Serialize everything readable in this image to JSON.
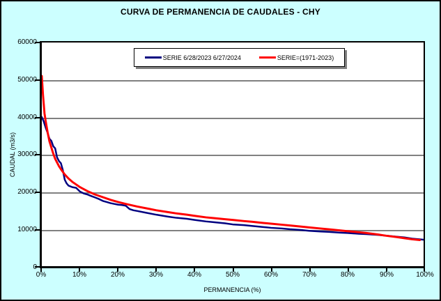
{
  "chart_data": {
    "type": "line",
    "title": "CURVA DE PERMANENCIA DE CAUDALES - CHY",
    "xlabel": "PERMANENCIA (%)",
    "ylabel": "CAUDAL (m3/s)",
    "xlim": [
      0,
      100
    ],
    "ylim": [
      0,
      60000
    ],
    "x_ticks": [
      "0%",
      "10%",
      "20%",
      "30%",
      "40%",
      "50%",
      "60%",
      "70%",
      "80%",
      "90%",
      "100%"
    ],
    "y_ticks": [
      "0",
      "10000",
      "20000",
      "30000",
      "40000",
      "50000",
      "60000"
    ],
    "grid": "horizontal-gray",
    "plot_background": "#FFFFFF",
    "chart_background": "#CCFFFF",
    "gridline_color": "#808080",
    "legend_position": "top-center-inside",
    "series": [
      {
        "name": "SERIE 6/28/2023 6/27/2024",
        "color": "#000080",
        "width": 2.5,
        "points": [
          [
            0,
            40000
          ],
          [
            0.5,
            38800
          ],
          [
            1,
            37200
          ],
          [
            1.5,
            35800
          ],
          [
            2,
            34200
          ],
          [
            2.5,
            33600
          ],
          [
            3,
            32200
          ],
          [
            3.5,
            31600
          ],
          [
            4,
            29200
          ],
          [
            4.5,
            28200
          ],
          [
            5,
            27600
          ],
          [
            5.5,
            25800
          ],
          [
            6,
            23200
          ],
          [
            6.5,
            22200
          ],
          [
            7,
            21600
          ],
          [
            8,
            21200
          ],
          [
            9,
            21000
          ],
          [
            10,
            20000
          ],
          [
            11,
            19500
          ],
          [
            12,
            19200
          ],
          [
            13,
            18800
          ],
          [
            14,
            18400
          ],
          [
            15,
            18000
          ],
          [
            16,
            17500
          ],
          [
            17,
            17200
          ],
          [
            18,
            16900
          ],
          [
            19,
            16700
          ],
          [
            20,
            16500
          ],
          [
            21,
            16400
          ],
          [
            22,
            16200
          ],
          [
            23,
            15300
          ],
          [
            24,
            15000
          ],
          [
            25,
            14800
          ],
          [
            27,
            14400
          ],
          [
            30,
            13800
          ],
          [
            33,
            13300
          ],
          [
            35,
            13000
          ],
          [
            38,
            12700
          ],
          [
            40,
            12400
          ],
          [
            43,
            12000
          ],
          [
            45,
            11800
          ],
          [
            48,
            11500
          ],
          [
            50,
            11200
          ],
          [
            53,
            11000
          ],
          [
            55,
            10800
          ],
          [
            58,
            10500
          ],
          [
            60,
            10300
          ],
          [
            63,
            10100
          ],
          [
            65,
            9900
          ],
          [
            68,
            9700
          ],
          [
            70,
            9500
          ],
          [
            73,
            9300
          ],
          [
            75,
            9200
          ],
          [
            78,
            9000
          ],
          [
            80,
            8900
          ],
          [
            83,
            8700
          ],
          [
            85,
            8600
          ],
          [
            88,
            8400
          ],
          [
            90,
            8200
          ],
          [
            93,
            7900
          ],
          [
            95,
            7700
          ],
          [
            97,
            7400
          ],
          [
            100,
            7100
          ]
        ]
      },
      {
        "name": "SERIE=(1971-2023)",
        "color": "#FF0000",
        "width": 3,
        "points": [
          [
            0,
            51000
          ],
          [
            0.3,
            46000
          ],
          [
            0.7,
            41000
          ],
          [
            1,
            39000
          ],
          [
            1.5,
            36000
          ],
          [
            2,
            33500
          ],
          [
            2.5,
            31800
          ],
          [
            3,
            30200
          ],
          [
            3.5,
            28800
          ],
          [
            4,
            27800
          ],
          [
            4.5,
            26800
          ],
          [
            5,
            26000
          ],
          [
            6,
            24600
          ],
          [
            7,
            23500
          ],
          [
            8,
            22600
          ],
          [
            9,
            21900
          ],
          [
            10,
            21200
          ],
          [
            12,
            20100
          ],
          [
            14,
            19200
          ],
          [
            16,
            18500
          ],
          [
            18,
            17800
          ],
          [
            20,
            17200
          ],
          [
            22,
            16700
          ],
          [
            25,
            16000
          ],
          [
            28,
            15400
          ],
          [
            30,
            15000
          ],
          [
            33,
            14500
          ],
          [
            35,
            14200
          ],
          [
            38,
            13800
          ],
          [
            40,
            13500
          ],
          [
            43,
            13100
          ],
          [
            45,
            12900
          ],
          [
            48,
            12600
          ],
          [
            50,
            12400
          ],
          [
            53,
            12100
          ],
          [
            55,
            11900
          ],
          [
            58,
            11600
          ],
          [
            60,
            11400
          ],
          [
            63,
            11100
          ],
          [
            65,
            10900
          ],
          [
            68,
            10600
          ],
          [
            70,
            10400
          ],
          [
            73,
            10100
          ],
          [
            75,
            9900
          ],
          [
            78,
            9600
          ],
          [
            80,
            9400
          ],
          [
            83,
            9100
          ],
          [
            85,
            8900
          ],
          [
            88,
            8500
          ],
          [
            90,
            8200
          ],
          [
            93,
            7800
          ],
          [
            95,
            7500
          ],
          [
            97,
            7200
          ],
          [
            99,
            7000
          ]
        ]
      }
    ]
  }
}
